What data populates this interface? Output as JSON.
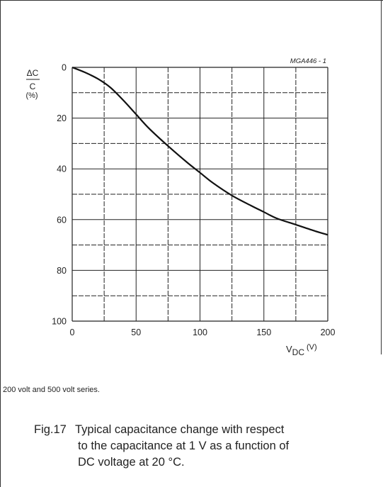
{
  "chart_data": {
    "type": "line",
    "code_label": "MGA446 - 1",
    "ylabel": "ΔC/C (%)",
    "ylabel_parts": {
      "numerator": "ΔC",
      "denominator": "C",
      "unit": "(%)"
    },
    "xlabel": "V",
    "xlabel_sub": "DC",
    "xlabel_unit": "(V)",
    "xlim": [
      0,
      200
    ],
    "ylim": [
      0,
      100
    ],
    "y_inverted": true,
    "x_ticks": [
      "0",
      "50",
      "100",
      "150",
      "200"
    ],
    "y_ticks": [
      "0",
      "20",
      "40",
      "60",
      "80",
      "100"
    ],
    "grid": true,
    "series": [
      {
        "x": [
          0,
          10,
          20,
          30,
          40,
          50,
          60,
          75,
          90,
          100,
          110,
          125,
          140,
          150,
          160,
          175,
          190,
          200
        ],
        "y": [
          0,
          2,
          4.5,
          8,
          13,
          18.5,
          24,
          31,
          37.5,
          41.5,
          45.5,
          50.5,
          54.5,
          57,
          59.5,
          62,
          64.5,
          66
        ]
      }
    ]
  },
  "note": "200 volt and 500 volt series.",
  "caption": {
    "fig_label": "Fig.17",
    "line1": "Typical capacitance change with respect",
    "line2": "to the capacitance at 1 V as a function of",
    "line3": "DC voltage at 20 °C."
  }
}
